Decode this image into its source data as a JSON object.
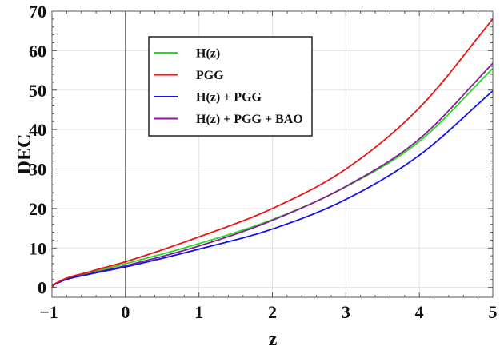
{
  "chart_data": {
    "type": "line",
    "title": "",
    "xlabel": "z",
    "ylabel": "DEC",
    "xlim": [
      -1,
      5
    ],
    "ylim": [
      -2.5,
      70
    ],
    "grid": true,
    "legend_position": "upper-left-center (inside, framed)",
    "xticks": [
      -1,
      0,
      1,
      2,
      3,
      4,
      5
    ],
    "xtick_labels": [
      "−1",
      "0",
      "1",
      "2",
      "3",
      "4",
      "5"
    ],
    "yticks": [
      0,
      10,
      20,
      30,
      40,
      50,
      60,
      70
    ],
    "ytick_labels": [
      "0",
      "10",
      "20",
      "30",
      "40",
      "50",
      "60",
      "70"
    ],
    "x": [
      -1,
      -0.9,
      -0.5,
      0,
      1,
      2,
      3,
      4,
      5
    ],
    "series": [
      {
        "name": "H(z)",
        "color": "#22dd22",
        "values": [
          0,
          1.4,
          3.6,
          6.0,
          11.1,
          17.2,
          25.5,
          37.0,
          55.5
        ]
      },
      {
        "name": "PGG",
        "color": "#ee1111",
        "values": [
          0,
          1.5,
          3.9,
          6.5,
          12.8,
          20.0,
          30.0,
          45.5,
          68.0
        ]
      },
      {
        "name": "H(z) + PGG",
        "color": "#1111ee",
        "values": [
          0,
          1.3,
          3.3,
          5.2,
          9.7,
          14.8,
          22.3,
          33.5,
          49.8
        ]
      },
      {
        "name": "H(z) + PGG + BAO",
        "color": "#8b1a9b",
        "values": [
          0,
          1.35,
          3.4,
          5.5,
          10.5,
          17.0,
          25.6,
          37.6,
          56.8
        ]
      }
    ]
  },
  "legend": {
    "items": [
      {
        "label": "H(z)",
        "color": "#22dd22"
      },
      {
        "label": "PGG",
        "color": "#ee1111"
      },
      {
        "label": "H(z) + PGG",
        "color": "#1111ee"
      },
      {
        "label": "H(z) + PGG + BAO",
        "color": "#8b1a9b"
      }
    ]
  },
  "axes": {
    "xlabel": "z",
    "ylabel": "DEC"
  }
}
